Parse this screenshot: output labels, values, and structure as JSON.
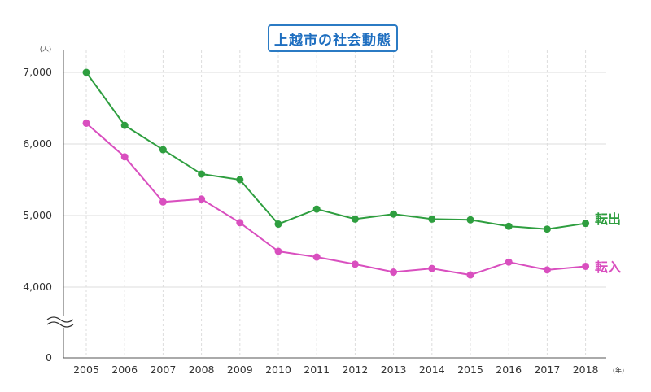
{
  "chart_data": {
    "type": "line",
    "title": "上越市の社会動態",
    "y_unit": "(人)",
    "x_unit": "(年)",
    "categories": [
      "2005",
      "2006",
      "2007",
      "2008",
      "2009",
      "2010",
      "2011",
      "2012",
      "2013",
      "2014",
      "2015",
      "2016",
      "2017",
      "2018"
    ],
    "y_ticks": [
      "0",
      "4,000",
      "5,000",
      "6,000",
      "7,000"
    ],
    "axis_break": true,
    "ylim": [
      4000,
      7000
    ],
    "grid": true,
    "series": [
      {
        "name": "転出",
        "color": "#2e9e3f",
        "values": [
          7000,
          6260,
          5920,
          5580,
          5500,
          4880,
          5090,
          4950,
          5020,
          4950,
          4940,
          4850,
          4810,
          4890
        ]
      },
      {
        "name": "転入",
        "color": "#d94fbf",
        "values": [
          6290,
          5820,
          5190,
          5230,
          4900,
          4500,
          4420,
          4320,
          4210,
          4260,
          4170,
          4350,
          4240,
          4290
        ]
      }
    ]
  }
}
